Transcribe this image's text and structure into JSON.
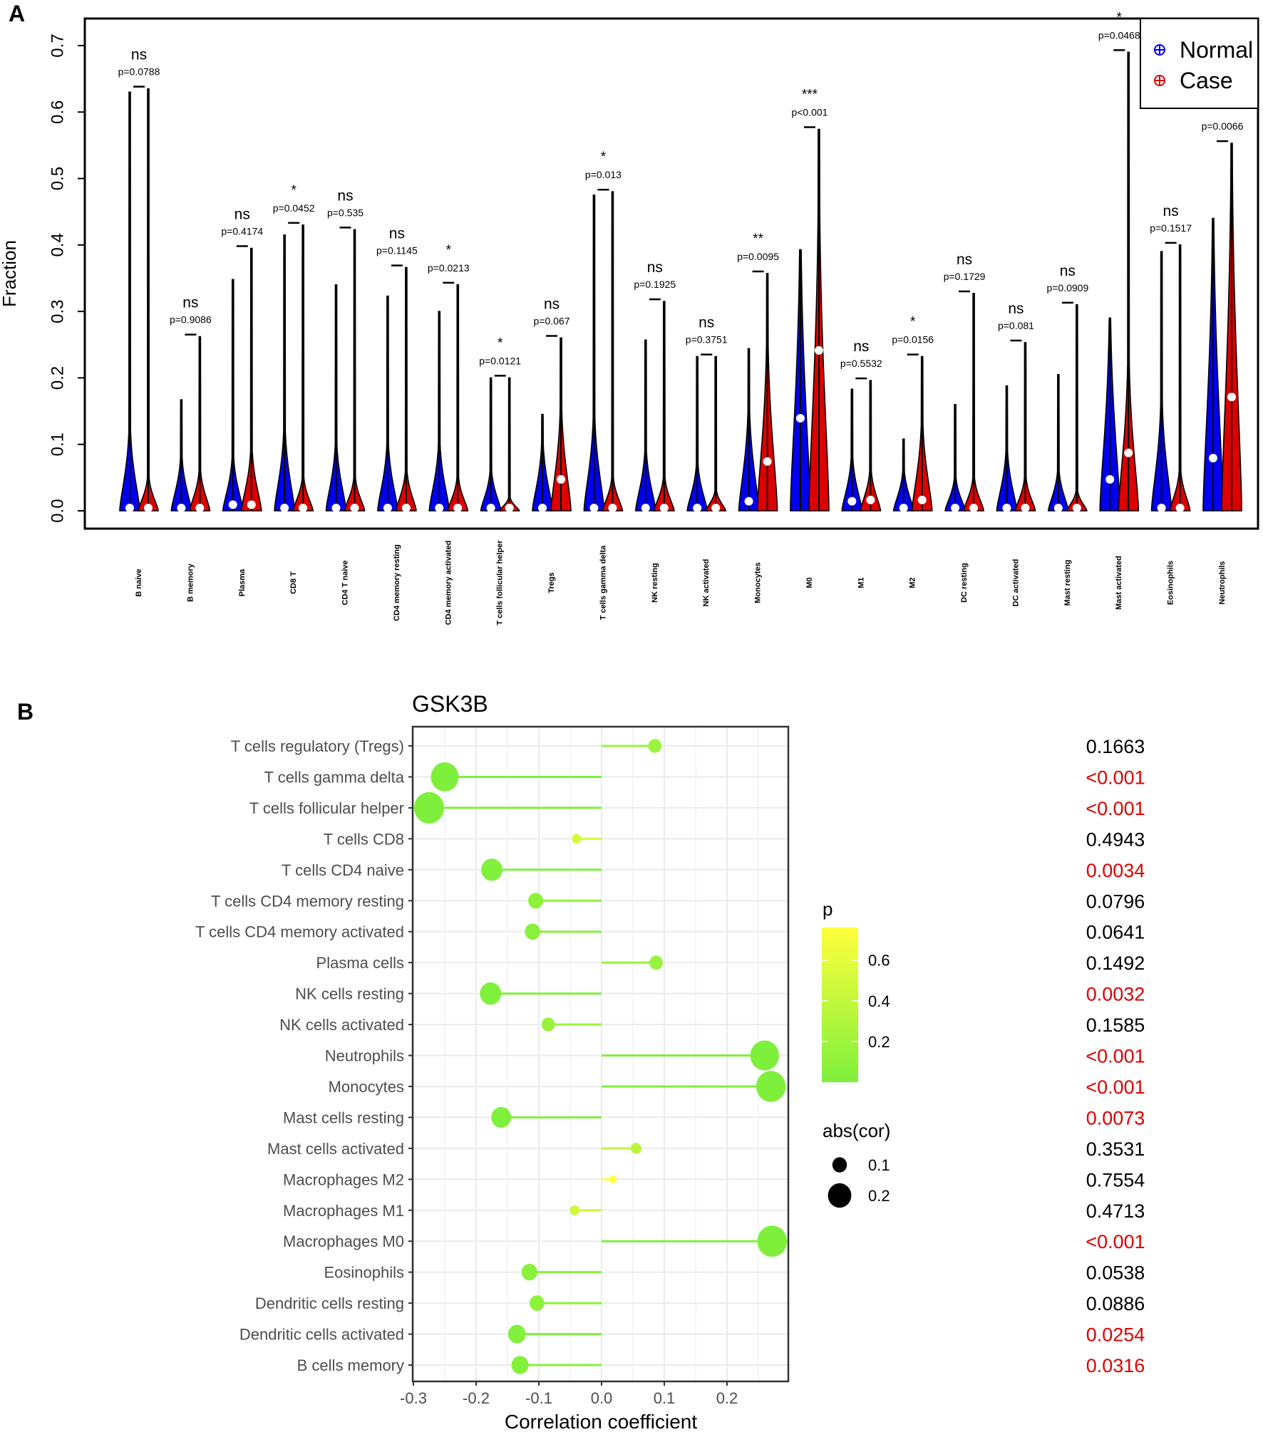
{
  "chart_data": [
    {
      "type": "violin",
      "panel_label": "A",
      "ylabel": "Fraction",
      "ylim": [
        0,
        0.7
      ],
      "yticks": [
        "0.0",
        "0.1",
        "0.2",
        "0.3",
        "0.4",
        "0.5",
        "0.6",
        "0.7"
      ],
      "legend": {
        "position": "top-right",
        "entries": [
          {
            "name": "Normal",
            "color": "#0000ee"
          },
          {
            "name": "Case",
            "color": "#dd0000"
          }
        ]
      },
      "groups": [
        {
          "category": "B naive",
          "normal_max": 0.63,
          "case_max": 0.635,
          "normal_median": 0.0,
          "case_median": 0.0,
          "normal_spread": 0.12,
          "case_spread": 0.05,
          "sig": "ns",
          "p": "p=0.0788"
        },
        {
          "category": "B memory",
          "normal_max": 0.167,
          "case_max": 0.262,
          "normal_median": 0.0,
          "case_median": 0.0,
          "normal_spread": 0.08,
          "case_spread": 0.06,
          "sig": "ns",
          "p": "p=0.9086"
        },
        {
          "category": "Plasma",
          "normal_max": 0.348,
          "case_max": 0.395,
          "normal_median": 0.005,
          "case_median": 0.005,
          "normal_spread": 0.08,
          "case_spread": 0.09,
          "sig": "ns",
          "p": "p=0.4174"
        },
        {
          "category": "CD8 T",
          "normal_max": 0.415,
          "case_max": 0.43,
          "normal_median": 0.0,
          "case_median": 0.0,
          "normal_spread": 0.12,
          "case_spread": 0.05,
          "sig": "*",
          "p": "p=0.0452"
        },
        {
          "category": "CD4 T naive",
          "normal_max": 0.34,
          "case_max": 0.423,
          "normal_median": 0.0,
          "case_median": 0.0,
          "normal_spread": 0.1,
          "case_spread": 0.05,
          "sig": "ns",
          "p": "p=0.535"
        },
        {
          "category": "CD4 memory resting",
          "normal_max": 0.323,
          "case_max": 0.366,
          "normal_median": 0.0,
          "case_median": 0.0,
          "normal_spread": 0.1,
          "case_spread": 0.06,
          "sig": "ns",
          "p": "p=0.1145"
        },
        {
          "category": "CD4 memory activated",
          "normal_max": 0.3,
          "case_max": 0.34,
          "normal_median": 0.0,
          "case_median": 0.0,
          "normal_spread": 0.1,
          "case_spread": 0.05,
          "sig": "*",
          "p": "p=0.0213"
        },
        {
          "category": "T cells follicular helper",
          "normal_max": 0.2,
          "case_max": 0.2,
          "normal_median": 0.0,
          "case_median": 0.0,
          "normal_spread": 0.06,
          "case_spread": 0.02,
          "sig": "*",
          "p": "p=0.0121"
        },
        {
          "category": "Tregs",
          "normal_max": 0.145,
          "case_max": 0.26,
          "normal_median": 0.0,
          "case_median": 0.043,
          "normal_spread": 0.1,
          "case_spread": 0.15,
          "sig": "ns",
          "p": "p=0.067"
        },
        {
          "category": "T cells gamma delta",
          "normal_max": 0.475,
          "case_max": 0.48,
          "normal_median": 0.0,
          "case_median": 0.0,
          "normal_spread": 0.14,
          "case_spread": 0.05,
          "sig": "*",
          "p": "p=0.013"
        },
        {
          "category": "NK resting",
          "normal_max": 0.257,
          "case_max": 0.315,
          "normal_median": 0.0,
          "case_median": 0.0,
          "normal_spread": 0.09,
          "case_spread": 0.05,
          "sig": "ns",
          "p": "p=0.1925"
        },
        {
          "category": "NK activated",
          "normal_max": 0.232,
          "case_max": 0.232,
          "normal_median": 0.0,
          "case_median": 0.0,
          "normal_spread": 0.07,
          "case_spread": 0.03,
          "sig": "ns",
          "p": "p=0.3751"
        },
        {
          "category": "Monocytes",
          "normal_max": 0.244,
          "case_max": 0.357,
          "normal_median": 0.01,
          "case_median": 0.07,
          "normal_spread": 0.15,
          "case_spread": 0.25,
          "sig": "**",
          "p": "p=0.0095"
        },
        {
          "category": "M0",
          "normal_max": 0.393,
          "case_max": 0.574,
          "normal_median": 0.135,
          "case_median": 0.237,
          "normal_spread": 0.39,
          "case_spread": 0.45,
          "sig": "***",
          "p": "p<0.001"
        },
        {
          "category": "M1",
          "normal_max": 0.183,
          "case_max": 0.196,
          "normal_median": 0.01,
          "case_median": 0.012,
          "normal_spread": 0.08,
          "case_spread": 0.06,
          "sig": "ns",
          "p": "p=0.5532"
        },
        {
          "category": "M2",
          "normal_max": 0.108,
          "case_max": 0.232,
          "normal_median": 0.0,
          "case_median": 0.012,
          "normal_spread": 0.06,
          "case_spread": 0.13,
          "sig": "*",
          "p": "p=0.0156"
        },
        {
          "category": "DC resting",
          "normal_max": 0.16,
          "case_max": 0.327,
          "normal_median": 0.0,
          "case_median": 0.0,
          "normal_spread": 0.05,
          "case_spread": 0.05,
          "sig": "ns",
          "p": "p=0.1729"
        },
        {
          "category": "DC activated",
          "normal_max": 0.188,
          "case_max": 0.253,
          "normal_median": 0.0,
          "case_median": 0.0,
          "normal_spread": 0.09,
          "case_spread": 0.05,
          "sig": "ns",
          "p": "p=0.081"
        },
        {
          "category": "Mast resting",
          "normal_max": 0.205,
          "case_max": 0.31,
          "normal_median": 0.0,
          "case_median": 0.0,
          "normal_spread": 0.06,
          "case_spread": 0.03,
          "sig": "ns",
          "p": "p=0.0909"
        },
        {
          "category": "Mast activated",
          "normal_max": 0.29,
          "case_max": 0.69,
          "normal_median": 0.043,
          "case_median": 0.083,
          "normal_spread": 0.28,
          "case_spread": 0.22,
          "sig": "*",
          "p": "p=0.0468"
        },
        {
          "category": "Eosinophils",
          "normal_max": 0.39,
          "case_max": 0.4,
          "normal_median": 0.0,
          "case_median": 0.0,
          "normal_spread": 0.16,
          "case_spread": 0.06,
          "sig": "ns",
          "p": "p=0.1517"
        },
        {
          "category": "Neutrophils",
          "normal_max": 0.44,
          "case_max": 0.553,
          "normal_median": 0.075,
          "case_median": 0.167,
          "normal_spread": 0.42,
          "case_spread": 0.5,
          "sig": "**",
          "p": "p=0.0066"
        }
      ]
    },
    {
      "type": "lollipop",
      "panel_label": "B",
      "title": "GSK3B",
      "xlabel": "Correlation coefficient",
      "xlim": [
        -0.3,
        0.28
      ],
      "xticks": [
        "-0.3",
        "-0.2",
        "-0.1",
        "0.0",
        "0.1",
        "0.2"
      ],
      "xtick_values": [
        -0.3,
        -0.2,
        -0.1,
        0.0,
        0.1,
        0.2
      ],
      "grid": true,
      "colorbar": {
        "title": "p",
        "ticks": [
          "0.6",
          "0.4",
          "0.2"
        ],
        "tick_values": [
          0.6,
          0.4,
          0.2
        ],
        "range": [
          0,
          0.76
        ],
        "low_color": "#7ef03c",
        "high_color": "#ffff3c"
      },
      "size_legend": {
        "title": "abs(cor)",
        "entries": [
          "0.1",
          "0.2"
        ],
        "values": [
          0.1,
          0.2
        ]
      },
      "sig_color": "#dd0000",
      "rows": [
        {
          "label": "T cells regulatory (Tregs)",
          "cor": 0.085,
          "p": 0.1663,
          "p_text": "0.1663",
          "significant": false
        },
        {
          "label": "T cells gamma delta",
          "cor": -0.25,
          "p": 0.0005,
          "p_text": "<0.001",
          "significant": true
        },
        {
          "label": "T cells follicular helper",
          "cor": -0.275,
          "p": 0.0005,
          "p_text": "<0.001",
          "significant": true
        },
        {
          "label": "T cells CD8",
          "cor": -0.04,
          "p": 0.4943,
          "p_text": "0.4943",
          "significant": false
        },
        {
          "label": "T cells CD4 naive",
          "cor": -0.175,
          "p": 0.0034,
          "p_text": "0.0034",
          "significant": true
        },
        {
          "label": "T cells CD4 memory resting",
          "cor": -0.105,
          "p": 0.0796,
          "p_text": "0.0796",
          "significant": false
        },
        {
          "label": "T cells CD4 memory activated",
          "cor": -0.11,
          "p": 0.0641,
          "p_text": "0.0641",
          "significant": false
        },
        {
          "label": "Plasma cells",
          "cor": 0.087,
          "p": 0.1492,
          "p_text": "0.1492",
          "significant": false
        },
        {
          "label": "NK cells resting",
          "cor": -0.177,
          "p": 0.0032,
          "p_text": "0.0032",
          "significant": true
        },
        {
          "label": "NK cells activated",
          "cor": -0.085,
          "p": 0.1585,
          "p_text": "0.1585",
          "significant": false
        },
        {
          "label": "Neutrophils",
          "cor": 0.26,
          "p": 0.0005,
          "p_text": "<0.001",
          "significant": true
        },
        {
          "label": "Monocytes",
          "cor": 0.27,
          "p": 0.0005,
          "p_text": "<0.001",
          "significant": true
        },
        {
          "label": "Mast cells resting",
          "cor": -0.16,
          "p": 0.0073,
          "p_text": "0.0073",
          "significant": true
        },
        {
          "label": "Mast cells activated",
          "cor": 0.055,
          "p": 0.3531,
          "p_text": "0.3531",
          "significant": false
        },
        {
          "label": "Macrophages M2",
          "cor": 0.018,
          "p": 0.7554,
          "p_text": "0.7554",
          "significant": false
        },
        {
          "label": "Macrophages M1",
          "cor": -0.043,
          "p": 0.4713,
          "p_text": "0.4713",
          "significant": false
        },
        {
          "label": "Macrophages M0",
          "cor": 0.272,
          "p": 0.0005,
          "p_text": "<0.001",
          "significant": true
        },
        {
          "label": "Eosinophils",
          "cor": -0.115,
          "p": 0.0538,
          "p_text": "0.0538",
          "significant": false
        },
        {
          "label": "Dendritic cells resting",
          "cor": -0.103,
          "p": 0.0886,
          "p_text": "0.0886",
          "significant": false
        },
        {
          "label": "Dendritic cells activated",
          "cor": -0.135,
          "p": 0.0254,
          "p_text": "0.0254",
          "significant": true
        },
        {
          "label": "B cells memory",
          "cor": -0.13,
          "p": 0.0316,
          "p_text": "0.0316",
          "significant": true
        }
      ]
    }
  ]
}
